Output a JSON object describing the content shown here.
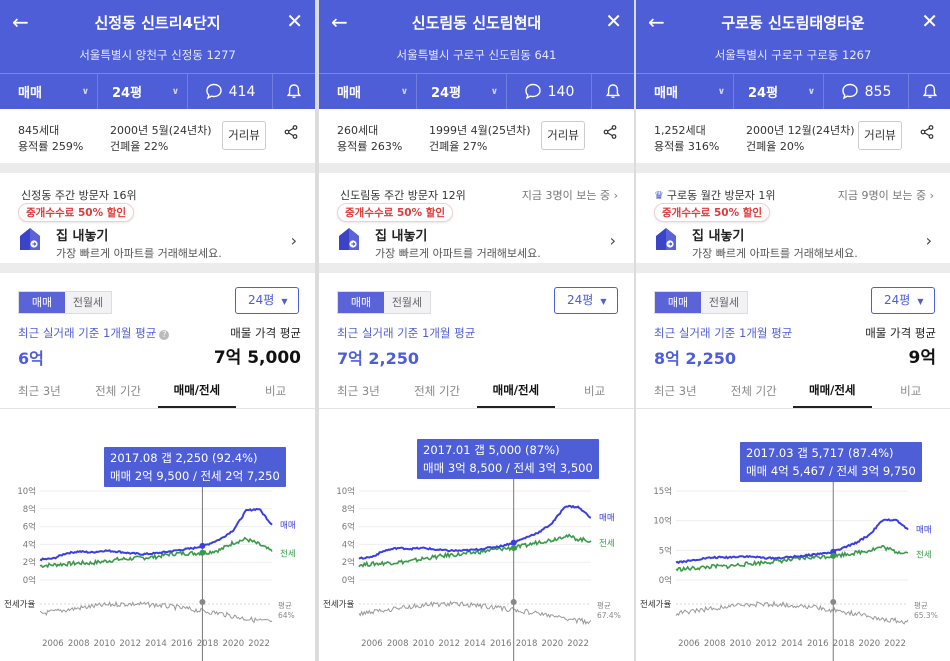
{
  "panels": [
    {
      "title": "신정동 신트리4단지",
      "address": "서울특별시 양천구 신정동 1277",
      "trade_type": "매매",
      "size": "24평",
      "comments": "414",
      "households": "845세대",
      "floor_area_ratio": "용적률 259%",
      "built": "2000년 5월(24년차)",
      "building_coverage": "건폐율 22%",
      "distance_view": "거리뷰",
      "visitor_rank": "신정동 주간 방문자 16위",
      "viewers_now": "",
      "promo_tag": "중개수수료 50% 할인",
      "promo_title": "집 내놓기",
      "promo_sub": "가장 빠르게 아파트를 거래해보세요.",
      "seg_sale": "매매",
      "seg_rent": "전월세",
      "size_select": "24평",
      "recent_label": "최근 실거래 기준 1개월 평균",
      "recent_value": "6억",
      "listing_label": "매물 가격 평균",
      "listing_value": "7억 5,000",
      "tabs": [
        "최근 3년",
        "전체 기간",
        "매매/전세",
        "비교"
      ],
      "active_tab": 2,
      "tooltip_line1": "2017.08  갭 2,250 (92.4%)",
      "tooltip_line2": "매매 2억 9,500 / 전세 2억 7,250",
      "y_ticks": [
        "10억",
        "8억",
        "6억",
        "4억",
        "2억",
        "0억"
      ],
      "series_sale_label": "매매",
      "series_jeonse_label": "전세",
      "ratio_label": "전세가율",
      "ratio_end_label1": "평균",
      "ratio_end_label2": "64%",
      "x_ticks": [
        "2006",
        "2008",
        "2010",
        "2012",
        "2014",
        "2016",
        "2018",
        "2020",
        "2022"
      ]
    },
    {
      "title": "신도림동 신도림현대",
      "address": "서울특별시 구로구 신도림동 641",
      "trade_type": "매매",
      "size": "24평",
      "comments": "140",
      "households": "260세대",
      "floor_area_ratio": "용적률 263%",
      "built": "1999년 4월(25년차)",
      "building_coverage": "건폐율 27%",
      "distance_view": "거리뷰",
      "visitor_rank": "신도림동 주간 방문자 12위",
      "viewers_now": "지금 3명이 보는 중",
      "promo_tag": "중개수수료 50% 할인",
      "promo_title": "집 내놓기",
      "promo_sub": "가장 빠르게 아파트를 거래해보세요.",
      "seg_sale": "매매",
      "seg_rent": "전월세",
      "size_select": "24평",
      "recent_label": "최근 실거래 기준 1개월 평균",
      "recent_value": "7억 2,250",
      "listing_label": "",
      "listing_value": "",
      "tabs": [
        "최근 3년",
        "전체 기간",
        "매매/전세",
        "비교"
      ],
      "active_tab": 2,
      "tooltip_line1": "2017.01  갭 5,000 (87%)",
      "tooltip_line2": "매매 3억 8,500 / 전세 3억 3,500",
      "y_ticks": [
        "10억",
        "8억",
        "6억",
        "4억",
        "2억",
        "0억"
      ],
      "series_sale_label": "매매",
      "series_jeonse_label": "전세",
      "ratio_label": "전세가율",
      "ratio_end_label1": "평균",
      "ratio_end_label2": "67.4%",
      "x_ticks": [
        "2006",
        "2008",
        "2010",
        "2012",
        "2014",
        "2016",
        "2018",
        "2020",
        "2022"
      ]
    },
    {
      "title": "구로동 신도림태영타운",
      "address": "서울특별시 구로구 구로동 1267",
      "trade_type": "매매",
      "size": "24평",
      "comments": "855",
      "households": "1,252세대",
      "floor_area_ratio": "용적률 316%",
      "built": "2000년 12월(24년차)",
      "building_coverage": "건폐율 20%",
      "distance_view": "거리뷰",
      "visitor_rank": "구로동 월간 방문자 1위",
      "viewers_now": "지금 9명이 보는 중",
      "promo_tag": "중개수수료 50% 할인",
      "promo_title": "집 내놓기",
      "promo_sub": "가장 빠르게 아파트를 거래해보세요.",
      "seg_sale": "매매",
      "seg_rent": "전월세",
      "size_select": "24평",
      "recent_label": "최근 실거래 기준 1개월 평균",
      "recent_value": "8억 2,250",
      "listing_label": "매물 가격 평균",
      "listing_value": "9억",
      "tabs": [
        "최근 3년",
        "전체 기간",
        "매매/전세",
        "비교"
      ],
      "active_tab": 2,
      "tooltip_line1": "2017.03  갭 5,717 (87.4%)",
      "tooltip_line2": "매매 4억 5,467 / 전세 3억 9,750",
      "y_ticks": [
        "15억",
        "10억",
        "5억",
        "0억"
      ],
      "series_sale_label": "매매",
      "series_jeonse_label": "전세",
      "ratio_label": "전세가율",
      "ratio_end_label1": "평균",
      "ratio_end_label2": "65.3%",
      "x_ticks": [
        "2006",
        "2008",
        "2010",
        "2012",
        "2014",
        "2016",
        "2018",
        "2020",
        "2022"
      ]
    }
  ],
  "chart_data": [
    {
      "type": "line",
      "ylim": [
        0,
        10
      ],
      "ylabel_unit": "억",
      "x": [
        2005,
        2006,
        2007,
        2008,
        2009,
        2010,
        2011,
        2012,
        2013,
        2014,
        2015,
        2016,
        2017,
        2018,
        2019,
        2020,
        2021,
        2022,
        2023
      ],
      "series": [
        {
          "name": "매매",
          "values": [
            2.3,
            2.4,
            3.0,
            3.2,
            3.1,
            3.3,
            3.2,
            3.0,
            2.9,
            3.0,
            3.2,
            3.4,
            3.6,
            4.0,
            4.6,
            5.6,
            7.8,
            8.0,
            6.2
          ]
        },
        {
          "name": "전세",
          "values": [
            1.6,
            1.7,
            1.8,
            1.9,
            1.9,
            2.1,
            2.3,
            2.4,
            2.5,
            2.6,
            2.9,
            3.0,
            3.0,
            3.1,
            3.4,
            4.2,
            4.6,
            4.0,
            3.2
          ]
        }
      ],
      "ratio_avg_percent": 64,
      "marker_x": 2017.6
    },
    {
      "type": "line",
      "ylim": [
        0,
        10
      ],
      "ylabel_unit": "억",
      "x": [
        2005,
        2006,
        2007,
        2008,
        2009,
        2010,
        2011,
        2012,
        2013,
        2014,
        2015,
        2016,
        2017,
        2018,
        2019,
        2020,
        2021,
        2022,
        2023
      ],
      "series": [
        {
          "name": "매매",
          "values": [
            2.4,
            2.6,
            3.3,
            3.6,
            3.5,
            3.6,
            3.4,
            3.3,
            3.3,
            3.4,
            3.6,
            3.8,
            4.2,
            4.8,
            5.4,
            6.4,
            8.3,
            8.2,
            7.0
          ]
        },
        {
          "name": "전세",
          "values": [
            1.7,
            1.8,
            1.9,
            2.0,
            2.1,
            2.4,
            2.6,
            2.8,
            2.9,
            3.1,
            3.3,
            3.5,
            3.6,
            3.9,
            4.3,
            4.5,
            5.0,
            4.6,
            4.4
          ]
        }
      ],
      "ratio_avg_percent": 67.4,
      "marker_x": 2017.0
    },
    {
      "type": "line",
      "ylim": [
        0,
        15
      ],
      "ylabel_unit": "억",
      "x": [
        2005,
        2006,
        2007,
        2008,
        2009,
        2010,
        2011,
        2012,
        2013,
        2014,
        2015,
        2016,
        2017,
        2018,
        2019,
        2020,
        2021,
        2022,
        2023
      ],
      "series": [
        {
          "name": "매매",
          "values": [
            3.0,
            3.2,
            3.6,
            3.8,
            3.8,
            4.0,
            3.9,
            3.7,
            3.7,
            3.9,
            4.1,
            4.4,
            4.6,
            5.4,
            6.3,
            7.6,
            10.0,
            10.2,
            8.5
          ]
        },
        {
          "name": "전세",
          "values": [
            1.8,
            1.9,
            2.1,
            2.3,
            2.3,
            2.6,
            2.8,
            3.0,
            3.2,
            3.4,
            3.7,
            3.9,
            4.0,
            4.3,
            4.6,
            5.0,
            5.6,
            4.8,
            4.6
          ]
        }
      ],
      "ratio_avg_percent": 65.3,
      "marker_x": 2017.2
    }
  ],
  "colors": {
    "brand": "#4e5ed6",
    "sale_line": "#3b3fe0",
    "jeonse_line": "#3a9a4a",
    "ratio_line": "#999999",
    "promo_red": "#e03a3a"
  }
}
